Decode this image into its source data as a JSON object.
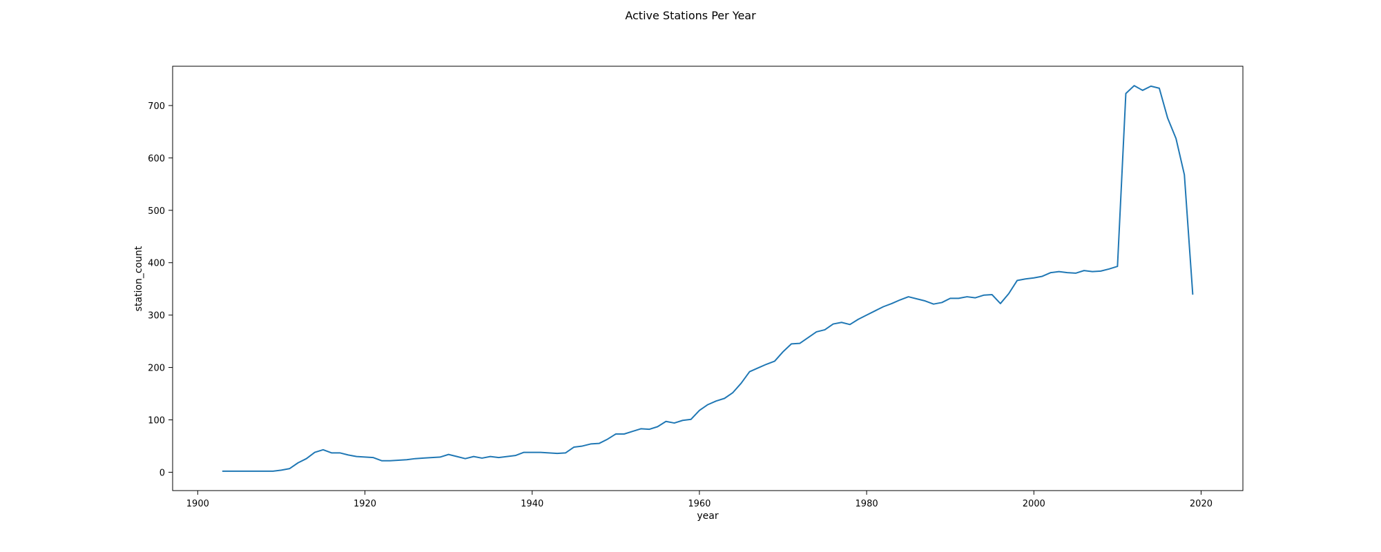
{
  "chart_data": {
    "type": "line",
    "title": "Active Stations Per Year",
    "xlabel": "year",
    "ylabel": "station_count",
    "xlim": [
      1897,
      2025
    ],
    "ylim": [
      -35,
      775
    ],
    "xticks": [
      1900,
      1920,
      1940,
      1960,
      1980,
      2000,
      2020
    ],
    "yticks": [
      0,
      100,
      200,
      300,
      400,
      500,
      600,
      700
    ],
    "grid": false,
    "legend": "none",
    "line_color": "#1f77b4",
    "series": [
      {
        "x": [
          1903,
          1904,
          1905,
          1906,
          1907,
          1908,
          1909,
          1910,
          1911,
          1912,
          1913,
          1914,
          1915,
          1916,
          1917,
          1918,
          1919,
          1920,
          1921,
          1922,
          1923,
          1924,
          1925,
          1926,
          1927,
          1928,
          1929,
          1930,
          1931,
          1932,
          1933,
          1934,
          1935,
          1936,
          1937,
          1938,
          1939,
          1940,
          1941,
          1942,
          1943,
          1944,
          1945,
          1946,
          1947,
          1948,
          1949,
          1950,
          1951,
          1952,
          1953,
          1954,
          1955,
          1956,
          1957,
          1958,
          1959,
          1960,
          1961,
          1962,
          1963,
          1964,
          1965,
          1966,
          1967,
          1968,
          1969,
          1970,
          1971,
          1972,
          1973,
          1974,
          1975,
          1976,
          1977,
          1978,
          1979,
          1980,
          1981,
          1982,
          1983,
          1984,
          1985,
          1986,
          1987,
          1988,
          1989,
          1990,
          1991,
          1992,
          1993,
          1994,
          1995,
          1996,
          1997,
          1998,
          1999,
          2000,
          2001,
          2002,
          2003,
          2004,
          2005,
          2006,
          2007,
          2008,
          2009,
          2010,
          2011,
          2012,
          2013,
          2014,
          2015,
          2016,
          2017,
          2018,
          2019
        ],
        "values": [
          2,
          2,
          2,
          2,
          2,
          2,
          2,
          4,
          7,
          18,
          26,
          38,
          43,
          37,
          37,
          33,
          30,
          29,
          28,
          22,
          22,
          23,
          24,
          26,
          27,
          28,
          29,
          34,
          30,
          26,
          30,
          27,
          30,
          28,
          30,
          32,
          38,
          38,
          38,
          37,
          36,
          37,
          48,
          50,
          54,
          55,
          63,
          73,
          73,
          78,
          83,
          82,
          87,
          97,
          94,
          99,
          101,
          118,
          129,
          136,
          141,
          152,
          170,
          192,
          199,
          206,
          212,
          230,
          245,
          246,
          257,
          268,
          272,
          283,
          286,
          282,
          292,
          300,
          308,
          316,
          322,
          329,
          335,
          331,
          327,
          321,
          324,
          332,
          332,
          335,
          333,
          338,
          339,
          322,
          341,
          366,
          369,
          371,
          374,
          381,
          383,
          381,
          380,
          385,
          383,
          384,
          388,
          393,
          723,
          738,
          729,
          737,
          733,
          676,
          637,
          568,
          340
        ]
      }
    ]
  }
}
